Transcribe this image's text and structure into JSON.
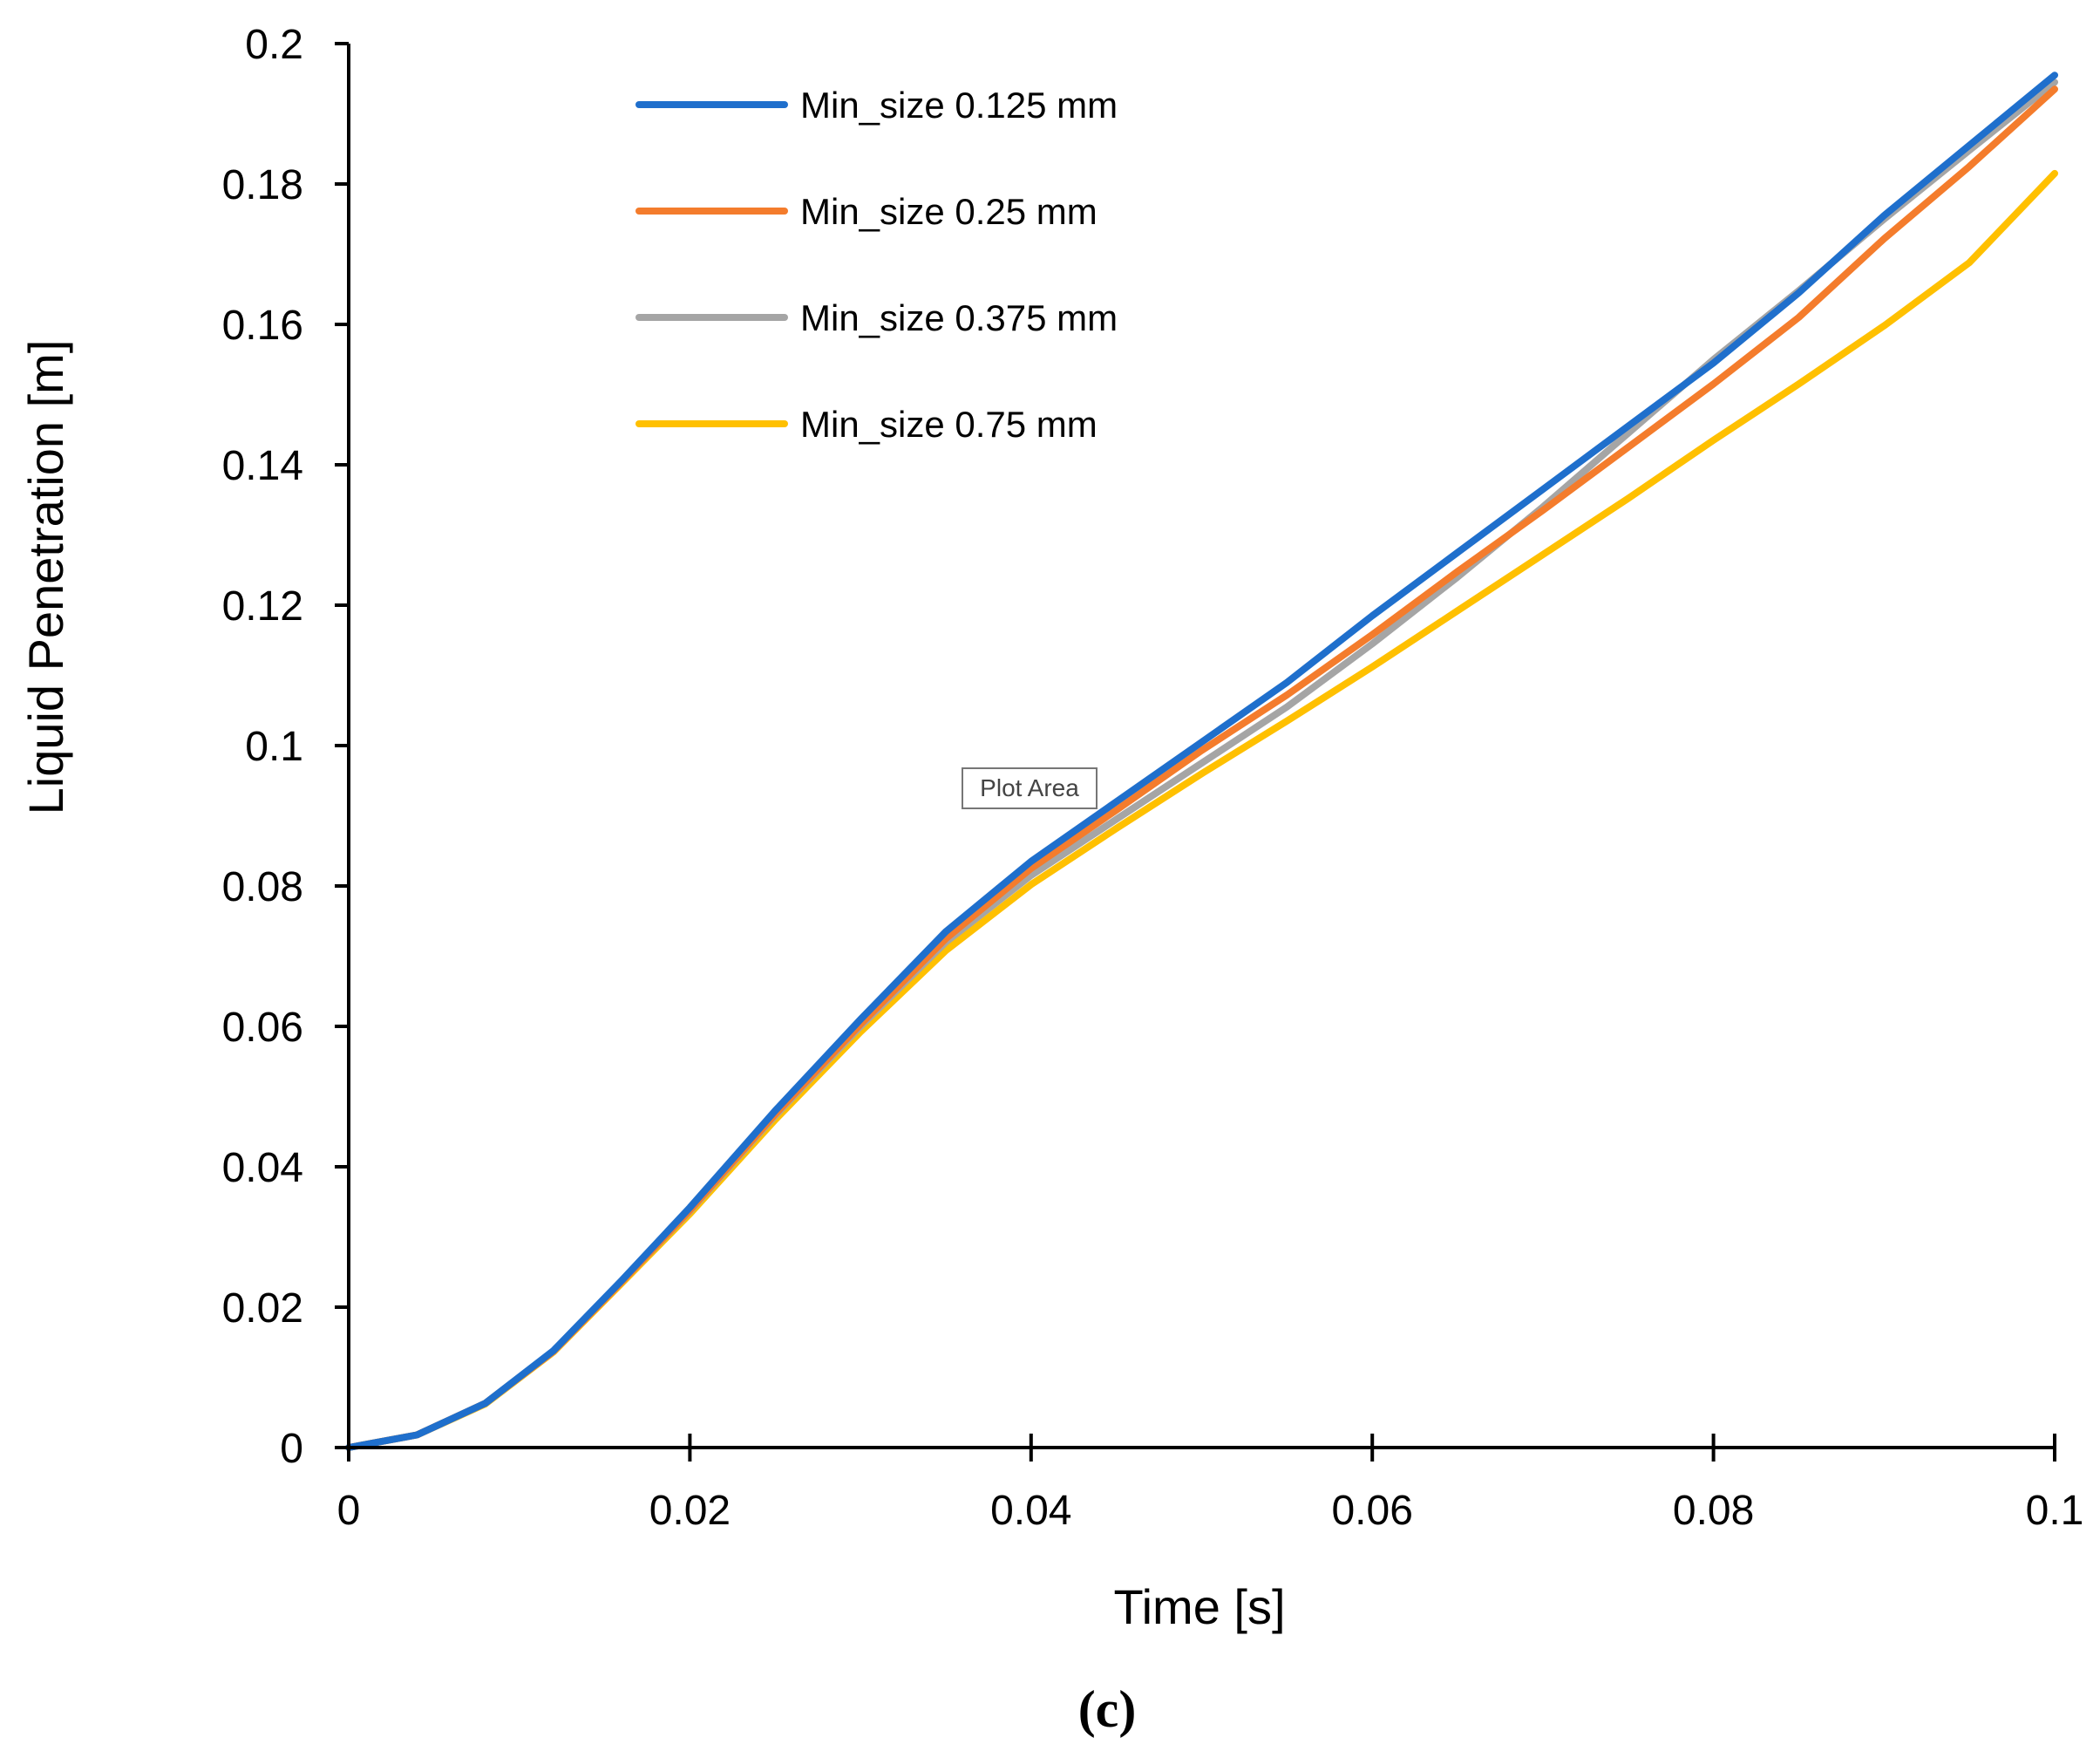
{
  "chart_data": {
    "type": "line",
    "title": "",
    "xlabel": "Time [s]",
    "ylabel": "Liquid Penetration [m]",
    "caption": "(c)",
    "xlim": [
      0,
      0.1
    ],
    "ylim": [
      0,
      0.2
    ],
    "xticks": [
      0,
      0.02,
      0.04,
      0.06,
      0.08,
      0.1
    ],
    "xtick_labels": [
      "0",
      "0.02",
      "0.04",
      "0.06",
      "0.08",
      "0.1"
    ],
    "yticks": [
      0,
      0.02,
      0.04,
      0.06,
      0.08,
      0.1,
      0.12,
      0.14,
      0.16,
      0.18,
      0.2
    ],
    "ytick_labels": [
      "0",
      "0.02",
      "0.04",
      "0.06",
      "0.08",
      "0.1",
      "0.12",
      "0.14",
      "0.16",
      "0.18",
      "0.2"
    ],
    "grid": false,
    "legend_position": "top-left",
    "tooltip": "Plot Area",
    "x": [
      0,
      0.004,
      0.008,
      0.012,
      0.016,
      0.02,
      0.025,
      0.03,
      0.035,
      0.04,
      0.045,
      0.05,
      0.055,
      0.06,
      0.065,
      0.07,
      0.075,
      0.08,
      0.085,
      0.09,
      0.095,
      0.1
    ],
    "series": [
      {
        "name": "Min_size 0.125 mm",
        "color": "#1f6fcc",
        "values": [
          0,
          0.0018,
          0.0063,
          0.0138,
          0.0238,
          0.0342,
          0.048,
          0.061,
          0.0735,
          0.0835,
          0.092,
          0.1005,
          0.109,
          0.1185,
          0.1275,
          0.1365,
          0.1455,
          0.1545,
          0.1645,
          0.1755,
          0.1855,
          0.1955
        ]
      },
      {
        "name": "Min_size 0.25 mm",
        "color": "#f47c2c",
        "values": [
          0,
          0.0018,
          0.0063,
          0.0137,
          0.0236,
          0.0338,
          0.0475,
          0.0603,
          0.0725,
          0.0825,
          0.0908,
          0.0993,
          0.1072,
          0.1158,
          0.1248,
          0.1335,
          0.1425,
          0.1515,
          0.161,
          0.1722,
          0.1825,
          0.1935
        ]
      },
      {
        "name": "Min_size 0.375 mm",
        "color": "#a5a5a5",
        "values": [
          0,
          0.0018,
          0.0063,
          0.0137,
          0.0236,
          0.0337,
          0.0473,
          0.06,
          0.072,
          0.0815,
          0.0895,
          0.0975,
          0.1055,
          0.1145,
          0.124,
          0.134,
          0.1445,
          0.155,
          0.1648,
          0.175,
          0.1848,
          0.1945
        ]
      },
      {
        "name": "Min_size 0.75 mm",
        "color": "#ffc000",
        "values": [
          0,
          0.0018,
          0.0062,
          0.0136,
          0.0234,
          0.0333,
          0.0467,
          0.0592,
          0.0708,
          0.0802,
          0.0882,
          0.096,
          0.1035,
          0.1112,
          0.1192,
          0.1272,
          0.1352,
          0.1435,
          0.1515,
          0.1598,
          0.1688,
          0.1815
        ]
      }
    ]
  }
}
